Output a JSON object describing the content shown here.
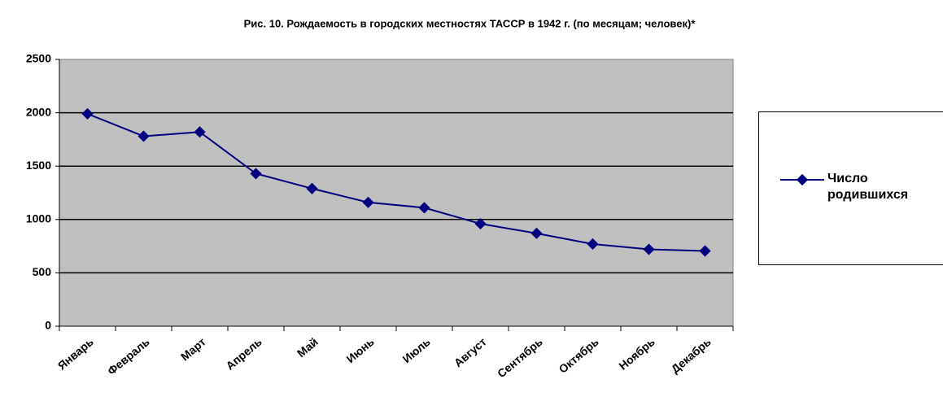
{
  "chart_data": {
    "type": "line",
    "title": "Рис. 10. Рождаемость в городских местностях ТАССР в 1942 г. (по месяцам; человек)*",
    "categories": [
      "Январь",
      "Февраль",
      "Март",
      "Апрель",
      "Май",
      "Июнь",
      "Июль",
      "Август",
      "Сентябрь",
      "Октябрь",
      "Ноябрь",
      "Декабрь"
    ],
    "series": [
      {
        "name": "Число родившихся",
        "color": "#000080",
        "values": [
          1990,
          1780,
          1820,
          1430,
          1290,
          1160,
          1110,
          960,
          870,
          770,
          720,
          705
        ]
      }
    ],
    "ylim": [
      0,
      2500
    ],
    "yticks": [
      0,
      500,
      1000,
      1500,
      2000,
      2500
    ],
    "grid": true,
    "legend": "right"
  }
}
